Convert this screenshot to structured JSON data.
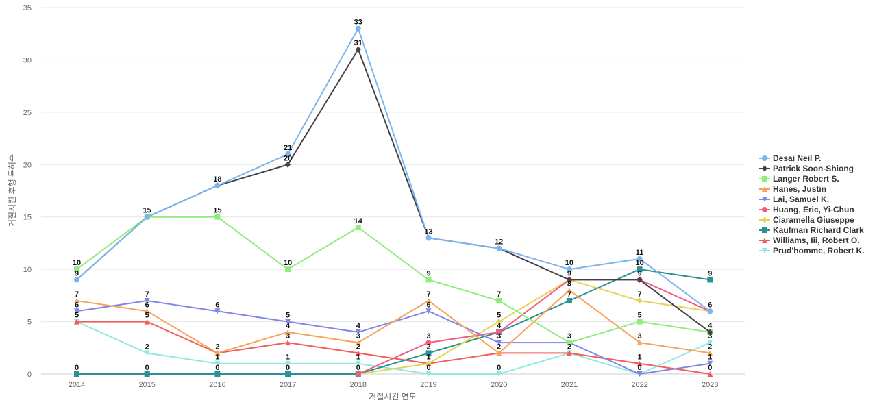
{
  "chart_data": {
    "type": "line",
    "title": "",
    "xlabel": "거절시킨 연도",
    "ylabel": "거절시킨 후행 특허수",
    "categories": [
      "2014",
      "2015",
      "2016",
      "2017",
      "2018",
      "2019",
      "2020",
      "2021",
      "2022",
      "2023"
    ],
    "ylim": [
      0,
      35
    ],
    "yticks": [
      0,
      5,
      10,
      15,
      20,
      25,
      30,
      35
    ],
    "grid": true,
    "legend_position": "right",
    "series": [
      {
        "name": "Desai Neil P.",
        "color": "#7cb5ec",
        "marker": "circle",
        "values": [
          9,
          15,
          18,
          21,
          33,
          13,
          12,
          10,
          11,
          6
        ]
      },
      {
        "name": "Patrick Soon-Shiong",
        "color": "#434348",
        "marker": "diamond",
        "values": [
          9,
          15,
          18,
          20,
          31,
          13,
          12,
          9,
          9,
          4
        ]
      },
      {
        "name": "Langer Robert S.",
        "color": "#90ed7d",
        "marker": "square",
        "values": [
          10,
          15,
          15,
          10,
          14,
          9,
          7,
          3,
          5,
          4
        ]
      },
      {
        "name": "Hanes, Justin",
        "color": "#f7a35c",
        "marker": "triangle",
        "values": [
          7,
          6,
          2,
          4,
          3,
          7,
          2,
          8,
          3,
          2
        ]
      },
      {
        "name": "Lai, Samuel K.",
        "color": "#8085e9",
        "marker": "triangle-down",
        "values": [
          6,
          7,
          6,
          5,
          4,
          6,
          3,
          3,
          0,
          1
        ]
      },
      {
        "name": "Huang, Eric, Yi-Chun",
        "color": "#f15c80",
        "marker": "circle",
        "values": [
          null,
          null,
          null,
          null,
          0,
          3,
          4,
          9,
          9,
          6
        ]
      },
      {
        "name": "Ciaramella Giuseppe",
        "color": "#e4d354",
        "marker": "diamond",
        "values": [
          null,
          null,
          null,
          null,
          0,
          1,
          5,
          9,
          7,
          6
        ]
      },
      {
        "name": "Kaufman Richard Clark",
        "color": "#2b908f",
        "marker": "square",
        "values": [
          0,
          0,
          0,
          0,
          0,
          2,
          4,
          7,
          10,
          9
        ]
      },
      {
        "name": "Williams, Iii, Robert O.",
        "color": "#f45b5b",
        "marker": "triangle",
        "values": [
          5,
          5,
          2,
          3,
          2,
          1,
          2,
          2,
          1,
          0
        ]
      },
      {
        "name": "Prud'homme, Robert K.",
        "color": "#91e8e1",
        "marker": "triangle-down",
        "values": [
          5,
          2,
          1,
          1,
          1,
          0,
          0,
          2,
          0,
          3
        ]
      }
    ],
    "labels": [
      {
        "x": "2014",
        "text": "10",
        "y": 10
      },
      {
        "x": "2014",
        "text": "9",
        "y": 9
      },
      {
        "x": "2014",
        "text": "7",
        "y": 7
      },
      {
        "x": "2014",
        "text": "6",
        "y": 6
      },
      {
        "x": "2014",
        "text": "5",
        "y": 5
      },
      {
        "x": "2014",
        "text": "0",
        "y": 0
      },
      {
        "x": "2015",
        "text": "15",
        "y": 15
      },
      {
        "x": "2015",
        "text": "7",
        "y": 7
      },
      {
        "x": "2015",
        "text": "6",
        "y": 6
      },
      {
        "x": "2015",
        "text": "5",
        "y": 5
      },
      {
        "x": "2015",
        "text": "2",
        "y": 2
      },
      {
        "x": "2015",
        "text": "0",
        "y": 0
      },
      {
        "x": "2016",
        "text": "18",
        "y": 18
      },
      {
        "x": "2016",
        "text": "15",
        "y": 15
      },
      {
        "x": "2016",
        "text": "6",
        "y": 6
      },
      {
        "x": "2016",
        "text": "2",
        "y": 2
      },
      {
        "x": "2016",
        "text": "1",
        "y": 1
      },
      {
        "x": "2016",
        "text": "0",
        "y": 0
      },
      {
        "x": "2017",
        "text": "21",
        "y": 21
      },
      {
        "x": "2017",
        "text": "20",
        "y": 20
      },
      {
        "x": "2017",
        "text": "10",
        "y": 10
      },
      {
        "x": "2017",
        "text": "5",
        "y": 5
      },
      {
        "x": "2017",
        "text": "4",
        "y": 4
      },
      {
        "x": "2017",
        "text": "3",
        "y": 3
      },
      {
        "x": "2017",
        "text": "1",
        "y": 1
      },
      {
        "x": "2017",
        "text": "0",
        "y": 0
      },
      {
        "x": "2018",
        "text": "33",
        "y": 33
      },
      {
        "x": "2018",
        "text": "31",
        "y": 31
      },
      {
        "x": "2018",
        "text": "14",
        "y": 14
      },
      {
        "x": "2018",
        "text": "4",
        "y": 4
      },
      {
        "x": "2018",
        "text": "3",
        "y": 3
      },
      {
        "x": "2018",
        "text": "2",
        "y": 2
      },
      {
        "x": "2018",
        "text": "1",
        "y": 1
      },
      {
        "x": "2018",
        "text": "0",
        "y": 0
      },
      {
        "x": "2019",
        "text": "13",
        "y": 13
      },
      {
        "x": "2019",
        "text": "9",
        "y": 9
      },
      {
        "x": "2019",
        "text": "7",
        "y": 7
      },
      {
        "x": "2019",
        "text": "6",
        "y": 6
      },
      {
        "x": "2019",
        "text": "3",
        "y": 3
      },
      {
        "x": "2019",
        "text": "2",
        "y": 2
      },
      {
        "x": "2019",
        "text": "1",
        "y": 1
      },
      {
        "x": "2019",
        "text": "0",
        "y": 0
      },
      {
        "x": "2020",
        "text": "12",
        "y": 12
      },
      {
        "x": "2020",
        "text": "7",
        "y": 7
      },
      {
        "x": "2020",
        "text": "5",
        "y": 5
      },
      {
        "x": "2020",
        "text": "4",
        "y": 4
      },
      {
        "x": "2020",
        "text": "3",
        "y": 3
      },
      {
        "x": "2020",
        "text": "2",
        "y": 2
      },
      {
        "x": "2020",
        "text": "0",
        "y": 0
      },
      {
        "x": "2021",
        "text": "10",
        "y": 10
      },
      {
        "x": "2021",
        "text": "9",
        "y": 9
      },
      {
        "x": "2021",
        "text": "8",
        "y": 8
      },
      {
        "x": "2021",
        "text": "7",
        "y": 7
      },
      {
        "x": "2021",
        "text": "3",
        "y": 3
      },
      {
        "x": "2021",
        "text": "2",
        "y": 2
      },
      {
        "x": "2022",
        "text": "11",
        "y": 11
      },
      {
        "x": "2022",
        "text": "10",
        "y": 10
      },
      {
        "x": "2022",
        "text": "9",
        "y": 9
      },
      {
        "x": "2022",
        "text": "7",
        "y": 7
      },
      {
        "x": "2022",
        "text": "5",
        "y": 5
      },
      {
        "x": "2022",
        "text": "3",
        "y": 3
      },
      {
        "x": "2022",
        "text": "1",
        "y": 1
      },
      {
        "x": "2022",
        "text": "0",
        "y": 0
      },
      {
        "x": "2023",
        "text": "9",
        "y": 9
      },
      {
        "x": "2023",
        "text": "6",
        "y": 6
      },
      {
        "x": "2023",
        "text": "4",
        "y": 4
      },
      {
        "x": "2023",
        "text": "3",
        "y": 3
      },
      {
        "x": "2023",
        "text": "2",
        "y": 2
      },
      {
        "x": "2023",
        "text": "1",
        "y": 1
      },
      {
        "x": "2023",
        "text": "0",
        "y": 0
      }
    ]
  }
}
